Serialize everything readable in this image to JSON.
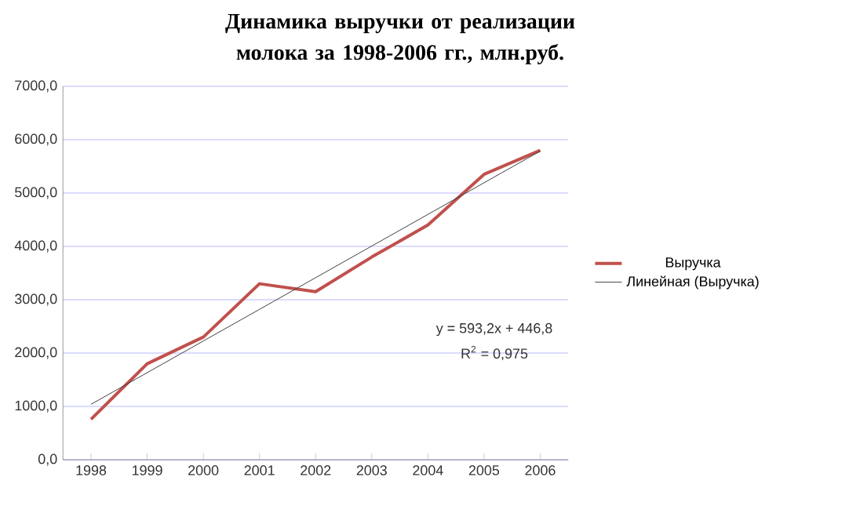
{
  "chart_data": {
    "type": "line",
    "title": "Динамика выручки от реализации молока за 1998-2006 гг., млн.руб.",
    "categories": [
      "1998",
      "1999",
      "2000",
      "2001",
      "2002",
      "2003",
      "2004",
      "2005",
      "2006"
    ],
    "series": [
      {
        "name": "Выручка",
        "color": "#c0504d",
        "values": [
          760,
          1800,
          2300,
          3300,
          3150,
          3800,
          4400,
          5350,
          5800
        ]
      },
      {
        "name": "Линейная (Выручка)",
        "color": "#404040",
        "values": [
          1040,
          1633.2,
          2226.4,
          2819.6,
          3412.8,
          4006,
          4599.2,
          5192.4,
          5785.6
        ]
      }
    ],
    "ylim": [
      0,
      7000
    ],
    "yticks": [
      {
        "value": 0,
        "label": "0,0"
      },
      {
        "value": 1000,
        "label": "1000,0"
      },
      {
        "value": 2000,
        "label": "2000,0"
      },
      {
        "value": 3000,
        "label": "3000,0"
      },
      {
        "value": 4000,
        "label": "4000,0"
      },
      {
        "value": 5000,
        "label": "5000,0"
      },
      {
        "value": 6000,
        "label": "6000,0"
      },
      {
        "value": 7000,
        "label": "7000,0"
      }
    ],
    "grid": "y",
    "legend": "right",
    "marker": "none",
    "line_style": "solid",
    "annotations": [
      "y = 593,2x + 446,8",
      "R$^{2}$ = 0,975"
    ]
  }
}
